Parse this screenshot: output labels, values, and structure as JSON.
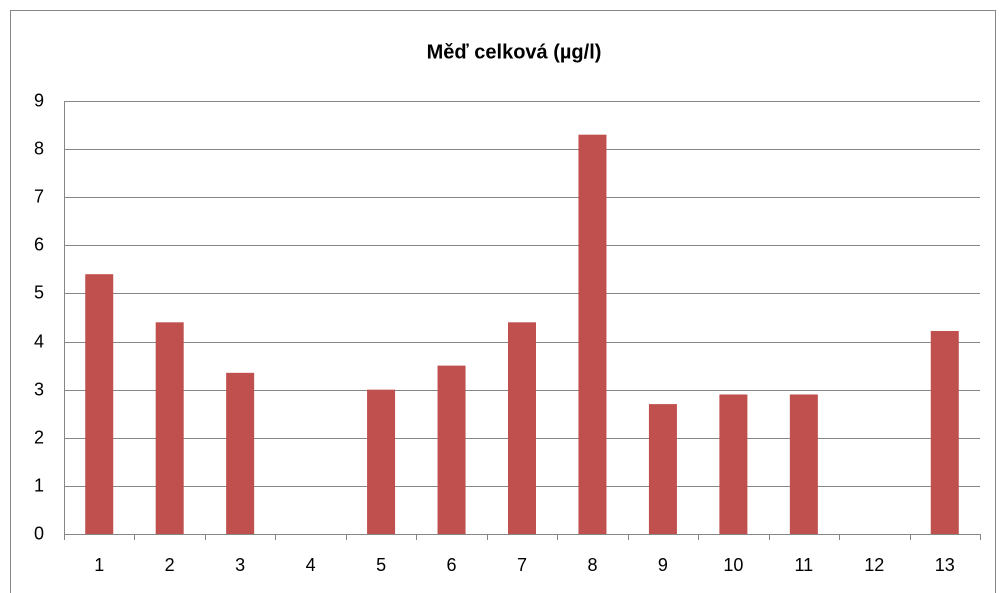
{
  "chart_data": {
    "type": "bar",
    "title": "Měď celková (µg/l)",
    "categories": [
      "1",
      "2",
      "3",
      "4",
      "5",
      "6",
      "7",
      "8",
      "9",
      "10",
      "11",
      "12",
      "13"
    ],
    "values": [
      5.4,
      4.4,
      3.35,
      null,
      3.0,
      3.5,
      4.4,
      8.3,
      2.7,
      2.9,
      2.9,
      null,
      4.22
    ],
    "color": "#c0504d",
    "ylim": [
      0,
      9
    ],
    "yticks": [
      0,
      1,
      2,
      3,
      4,
      5,
      6,
      7,
      8,
      9
    ],
    "grid": true
  }
}
